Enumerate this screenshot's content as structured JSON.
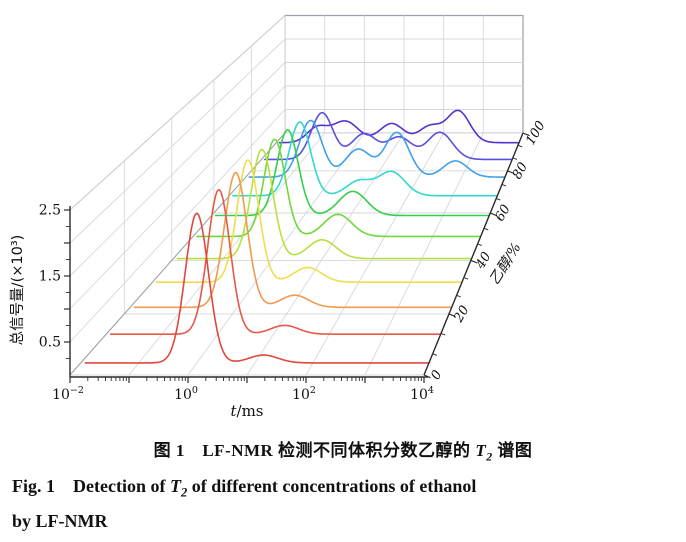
{
  "figure": {
    "y_axis": {
      "label": "总信号量/(×10³)",
      "tick_labels": [
        "0.5",
        "1.5",
        "2.5"
      ],
      "tick_values": [
        0.5,
        1.5,
        2.5
      ],
      "range": [
        0,
        2.5
      ]
    },
    "x_axis": {
      "label_italic": "t",
      "label_rest": "/ms",
      "base": "10",
      "tick_exponents": [
        -2,
        0,
        2,
        4
      ],
      "scale": "log",
      "range_log": [
        -2,
        4
      ]
    },
    "z_axis": {
      "label": "乙醇/%",
      "tick_values": [
        0,
        20,
        40,
        60,
        80,
        100
      ],
      "range": [
        0,
        100
      ]
    }
  },
  "chart_data": {
    "type": "line",
    "subtype": "3d-waterfall",
    "title": "",
    "x_label": "t/ms",
    "x_scale": "log",
    "x_range_ms": [
      0.01,
      10000
    ],
    "y_label": "总信号量/(×10³)",
    "y_range": [
      0,
      2.5
    ],
    "z_label": "乙醇/%",
    "z_range": [
      0,
      100
    ],
    "peak_format": "[log10(t/ms), sigma_log10, height_x10e3]",
    "series": [
      {
        "ethanol_pct": 0,
        "color": "#e0483e",
        "peaks": [
          [
            0.0,
            0.2,
            2.3
          ],
          [
            1.15,
            0.25,
            0.12
          ]
        ]
      },
      {
        "ethanol_pct": 10,
        "color": "#e55947",
        "peaks": [
          [
            0.02,
            0.2,
            2.3
          ],
          [
            1.2,
            0.25,
            0.14
          ]
        ]
      },
      {
        "ethanol_pct": 20,
        "color": "#ef9a4e",
        "peaks": [
          [
            -0.03,
            0.21,
            2.22
          ],
          [
            1.07,
            0.26,
            0.2
          ]
        ]
      },
      {
        "ethanol_pct": 30,
        "color": "#f2dc4e",
        "peaks": [
          [
            -0.15,
            0.21,
            2.08
          ],
          [
            1.01,
            0.27,
            0.25
          ]
        ]
      },
      {
        "ethanol_pct": 40,
        "color": "#b8e03e",
        "peaks": [
          [
            -0.22,
            0.22,
            1.92
          ],
          [
            0.99,
            0.28,
            0.33
          ]
        ]
      },
      {
        "ethanol_pct": 50,
        "color": "#6fd83a",
        "peaks": [
          [
            -0.3,
            0.22,
            1.76
          ],
          [
            1.02,
            0.29,
            0.4
          ]
        ]
      },
      {
        "ethanol_pct": 60,
        "color": "#35cf4a",
        "peaks": [
          [
            -0.36,
            0.23,
            1.6
          ],
          [
            1.05,
            0.3,
            0.45
          ]
        ]
      },
      {
        "ethanol_pct": 70,
        "color": "#30d8d0",
        "peaks": [
          [
            -0.42,
            0.24,
            1.42
          ],
          [
            0.9,
            0.28,
            0.28
          ],
          [
            1.63,
            0.3,
            0.46
          ]
        ]
      },
      {
        "ethanol_pct": 80,
        "color": "#41a0e8",
        "peaks": [
          [
            -0.5,
            0.26,
            1.12
          ],
          [
            0.6,
            0.3,
            0.55
          ],
          [
            1.5,
            0.28,
            0.88
          ],
          [
            2.85,
            0.28,
            0.32
          ]
        ]
      },
      {
        "ethanol_pct": 90,
        "color": "#5a50dd",
        "peaks": [
          [
            -0.55,
            0.26,
            0.95
          ],
          [
            0.45,
            0.3,
            0.52
          ],
          [
            1.3,
            0.3,
            0.45
          ],
          [
            2.27,
            0.3,
            0.55
          ]
        ]
      },
      {
        "ethanol_pct": 100,
        "color": "#5633cc",
        "peaks": [
          [
            -1.0,
            0.25,
            0.3
          ],
          [
            -0.3,
            0.33,
            0.45
          ],
          [
            0.85,
            0.3,
            0.4
          ],
          [
            1.8,
            0.28,
            0.34
          ],
          [
            2.5,
            0.28,
            0.66
          ]
        ]
      }
    ]
  },
  "caption": {
    "zh_pre": "图 1　LF-NMR 检测不同体积分数乙醇的 ",
    "t_var": "T",
    "t_sub": "2",
    "zh_post": " 谱图",
    "en1_pre": "Fig. 1　Detection of ",
    "en1_post": " of different concentrations of ethanol",
    "en2": "by LF-NMR"
  }
}
